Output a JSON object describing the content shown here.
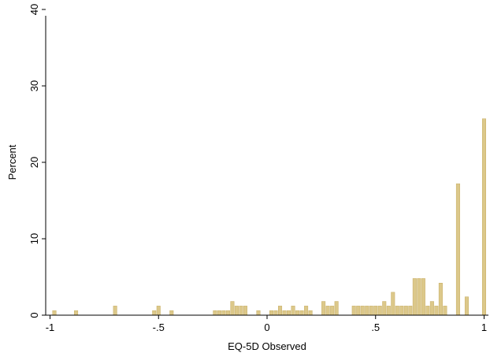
{
  "chart_data": {
    "type": "bar",
    "title": "",
    "xlabel": "EQ-5D Observed",
    "ylabel": "Percent",
    "xlim": [
      -1.02,
      1.02
    ],
    "ylim": [
      0,
      40
    ],
    "xticks": [
      {
        "value": -1,
        "label": "-1"
      },
      {
        "value": -0.5,
        "label": "-.5"
      },
      {
        "value": 0,
        "label": "0"
      },
      {
        "value": 0.5,
        "label": ".5"
      },
      {
        "value": 1,
        "label": "1"
      }
    ],
    "yticks": [
      {
        "value": 0,
        "label": "0"
      },
      {
        "value": 10,
        "label": "10"
      },
      {
        "value": 20,
        "label": "20"
      },
      {
        "value": 30,
        "label": "30"
      },
      {
        "value": 40,
        "label": "40"
      }
    ],
    "bin_width": 0.02,
    "bar_color": "#dcc88a",
    "bar_edge_color": "#c7ad63",
    "grid": false,
    "bins": [
      {
        "x": -0.98,
        "y": 0.6
      },
      {
        "x": -0.88,
        "y": 0.6
      },
      {
        "x": -0.7,
        "y": 1.2
      },
      {
        "x": -0.52,
        "y": 0.6
      },
      {
        "x": -0.5,
        "y": 1.2
      },
      {
        "x": -0.44,
        "y": 0.6
      },
      {
        "x": -0.24,
        "y": 0.6
      },
      {
        "x": -0.22,
        "y": 0.6
      },
      {
        "x": -0.2,
        "y": 0.6
      },
      {
        "x": -0.18,
        "y": 0.6
      },
      {
        "x": -0.16,
        "y": 1.8
      },
      {
        "x": -0.14,
        "y": 1.2
      },
      {
        "x": -0.12,
        "y": 1.2
      },
      {
        "x": -0.1,
        "y": 1.2
      },
      {
        "x": -0.04,
        "y": 0.6
      },
      {
        "x": 0.02,
        "y": 0.6
      },
      {
        "x": 0.04,
        "y": 0.6
      },
      {
        "x": 0.06,
        "y": 1.2
      },
      {
        "x": 0.08,
        "y": 0.6
      },
      {
        "x": 0.1,
        "y": 0.6
      },
      {
        "x": 0.12,
        "y": 1.2
      },
      {
        "x": 0.14,
        "y": 0.6
      },
      {
        "x": 0.16,
        "y": 0.6
      },
      {
        "x": 0.18,
        "y": 1.2
      },
      {
        "x": 0.2,
        "y": 0.6
      },
      {
        "x": 0.26,
        "y": 1.8
      },
      {
        "x": 0.28,
        "y": 1.2
      },
      {
        "x": 0.3,
        "y": 1.2
      },
      {
        "x": 0.32,
        "y": 1.8
      },
      {
        "x": 0.4,
        "y": 1.2
      },
      {
        "x": 0.42,
        "y": 1.2
      },
      {
        "x": 0.44,
        "y": 1.2
      },
      {
        "x": 0.46,
        "y": 1.2
      },
      {
        "x": 0.48,
        "y": 1.2
      },
      {
        "x": 0.5,
        "y": 1.2
      },
      {
        "x": 0.52,
        "y": 1.2
      },
      {
        "x": 0.54,
        "y": 1.8
      },
      {
        "x": 0.56,
        "y": 1.2
      },
      {
        "x": 0.58,
        "y": 3.0
      },
      {
        "x": 0.6,
        "y": 1.2
      },
      {
        "x": 0.62,
        "y": 1.2
      },
      {
        "x": 0.64,
        "y": 1.2
      },
      {
        "x": 0.66,
        "y": 1.2
      },
      {
        "x": 0.68,
        "y": 4.8
      },
      {
        "x": 0.7,
        "y": 4.8
      },
      {
        "x": 0.72,
        "y": 4.8
      },
      {
        "x": 0.74,
        "y": 1.2
      },
      {
        "x": 0.76,
        "y": 1.8
      },
      {
        "x": 0.78,
        "y": 1.2
      },
      {
        "x": 0.8,
        "y": 4.2
      },
      {
        "x": 0.82,
        "y": 1.2
      },
      {
        "x": 0.88,
        "y": 17.2
      },
      {
        "x": 0.92,
        "y": 2.4
      },
      {
        "x": 1.0,
        "y": 25.7
      }
    ]
  }
}
